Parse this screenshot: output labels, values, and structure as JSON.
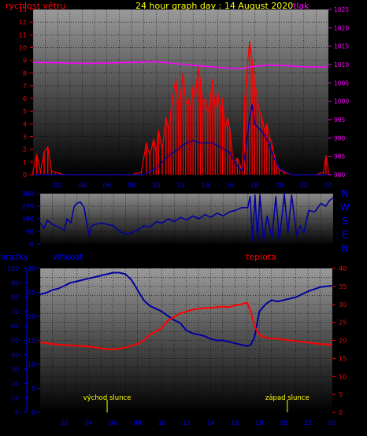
{
  "colors": {
    "wind": "#ff0000",
    "pressure": "#ff00ff",
    "direction": "#0000a0",
    "humidity": "#0000a0",
    "temperature": "#ff0000",
    "axis_text": "#0000ff",
    "title": "#ffff00"
  },
  "chart_data": [
    {
      "type": "line",
      "panel": "wind-pressure",
      "title": "24 hour graph day : 14 August 2020",
      "left_axis_label": "rychlost větru",
      "right_axis_label": "tlak",
      "x_ticks": [
        "02",
        "04",
        "06",
        "08",
        "10",
        "12",
        "14",
        "16",
        "18",
        "20",
        "22",
        "00"
      ],
      "y_left_ticks": [
        "0",
        "1",
        "2",
        "3",
        "4",
        "5",
        "6",
        "7",
        "8",
        "9",
        "10",
        "11",
        "12",
        "13"
      ],
      "y_left_range": [
        0,
        13
      ],
      "y_right_ticks": [
        "980",
        "985",
        "990",
        "995",
        "1000",
        "1005",
        "1010",
        "1015",
        "1020",
        "1025"
      ],
      "y_right_range": [
        980,
        1025
      ],
      "series": [
        {
          "key": "wind_gust",
          "x": [
            0,
            0.3,
            0.6,
            0.9,
            1.2,
            1.5,
            1.8,
            2.5,
            4,
            6,
            8,
            8.8,
            9.2,
            9.5,
            9.8,
            10,
            10.2,
            10.5,
            10.8,
            11,
            11.2,
            11.4,
            11.6,
            11.8,
            12,
            12.2,
            12.4,
            12.6,
            12.8,
            13,
            13.2,
            13.4,
            13.6,
            13.8,
            14,
            14.2,
            14.4,
            14.6,
            14.8,
            15,
            15.2,
            15.4,
            15.6,
            15.8,
            16,
            16.2,
            16.4,
            16.6,
            16.8,
            17,
            17.2,
            17.4,
            17.6,
            17.8,
            18,
            18.2,
            18.4,
            18.6,
            18.8,
            19,
            19.2,
            19.4,
            19.6,
            19.8,
            20,
            20.4,
            21,
            22,
            23,
            23.6,
            23.8,
            24
          ],
          "values": [
            0.3,
            1.6,
            0.2,
            1.8,
            2.2,
            0.3,
            0.2,
            0,
            0,
            0,
            0,
            0.2,
            2.5,
            1.5,
            2.8,
            1.8,
            3.5,
            2,
            4.5,
            3.5,
            5,
            6.5,
            7.5,
            5.5,
            6.5,
            8,
            5.5,
            6,
            5,
            7,
            6,
            8.5,
            7.5,
            5.5,
            6,
            4.8,
            6,
            7.5,
            5,
            6.5,
            5,
            6,
            3.5,
            4.5,
            3.5,
            1.5,
            1,
            1.3,
            0.8,
            0.3,
            6,
            8.5,
            10.5,
            9,
            7.5,
            6,
            5,
            4.5,
            3.5,
            4,
            3,
            2.5,
            1.5,
            0.8,
            0.4,
            0.2,
            0,
            0,
            0,
            0.2,
            1.5,
            0.3
          ]
        },
        {
          "key": "wind_avg",
          "x": [
            0,
            2,
            9,
            10,
            10.5,
            11,
            11.5,
            12,
            12.5,
            13,
            13.5,
            14,
            14.5,
            15,
            15.5,
            16,
            16.5,
            17,
            17.3,
            17.6,
            17.8,
            18,
            18.5,
            19,
            19.5,
            20,
            21,
            24
          ],
          "values": [
            0,
            0,
            0,
            0.5,
            1,
            1.5,
            1.8,
            2.2,
            2.5,
            2.7,
            2.5,
            2.5,
            2.5,
            2.3,
            2,
            1.7,
            0.8,
            0.3,
            2,
            4.5,
            5.5,
            4,
            3.5,
            2.8,
            1.5,
            0.5,
            0,
            0
          ]
        },
        {
          "key": "pressure",
          "x": [
            0,
            2,
            4,
            6,
            8,
            10,
            12,
            14,
            16,
            17,
            17.5,
            18,
            19,
            20,
            22,
            24
          ],
          "values": [
            1010.6,
            1010.5,
            1010.3,
            1010.4,
            1010.6,
            1010.8,
            1010.1,
            1009.5,
            1009.0,
            1008.9,
            1009.2,
            1009.5,
            1009.8,
            1009.8,
            1009.4,
            1009.3
          ]
        }
      ]
    },
    {
      "type": "line",
      "panel": "wind-direction",
      "y_ticks": [
        "0",
        "90",
        "180",
        "270",
        "360"
      ],
      "y_range": [
        0,
        360
      ],
      "compass_labels": [
        "N",
        "W",
        "S",
        "E",
        "N"
      ],
      "x_ticks": [
        "02",
        "04",
        "06",
        "08",
        "10",
        "12",
        "14",
        "16",
        "18",
        "20",
        "22",
        "00"
      ],
      "series": [
        {
          "key": "direction",
          "x": [
            0,
            0.3,
            0.6,
            1,
            1.5,
            2,
            2.2,
            2.5,
            2.8,
            3,
            3.3,
            3.6,
            4,
            4.2,
            4.5,
            5,
            5.5,
            6,
            6.5,
            7,
            7.5,
            8,
            8.5,
            9,
            9.5,
            10,
            10.5,
            11,
            11.5,
            12,
            12.5,
            13,
            13.5,
            14,
            14.5,
            15,
            15.5,
            16,
            16.5,
            17,
            17.2,
            17.4,
            17.6,
            17.8,
            18,
            18.3,
            18.6,
            19,
            19.3,
            19.6,
            20,
            20.3,
            20.6,
            21,
            21.3,
            21.6,
            22,
            22.5,
            23,
            23.4,
            23.7,
            24
          ],
          "values": [
            150,
            110,
            170,
            140,
            120,
            100,
            180,
            150,
            270,
            290,
            300,
            260,
            60,
            130,
            140,
            150,
            140,
            130,
            90,
            70,
            80,
            100,
            130,
            120,
            160,
            150,
            180,
            160,
            190,
            170,
            200,
            180,
            210,
            190,
            220,
            200,
            230,
            240,
            260,
            260,
            340,
            20,
            350,
            30,
            350,
            20,
            200,
            40,
            340,
            20,
            360,
            80,
            350,
            60,
            130,
            80,
            240,
            230,
            290,
            270,
            310,
            330
          ]
        }
      ]
    },
    {
      "type": "line",
      "panel": "rain-humidity-temperature",
      "left_axis_label": "srážky",
      "mid_axis_label": "vlhkost",
      "right_axis_label": "teplota",
      "x_ticks": [
        "02",
        "04",
        "06",
        "08",
        "10",
        "12",
        "14",
        "16",
        "18",
        "20",
        "22",
        "00"
      ],
      "y_left_ticks": [
        "0",
        "10",
        "20",
        "30",
        "40",
        "50",
        "60",
        "70",
        "80",
        "90",
        "100"
      ],
      "y_left_range": [
        0,
        100
      ],
      "y_mid_ticks": [
        "0",
        "5",
        "10",
        "15",
        "20",
        "25",
        "30"
      ],
      "y_mid_range": [
        0,
        30
      ],
      "y_right_ticks": [
        "0",
        "5",
        "10",
        "15",
        "20",
        "25",
        "30",
        "35",
        "40"
      ],
      "y_right_range": [
        0,
        40
      ],
      "annotations": [
        {
          "text": "východ slunce",
          "x": 5.5
        },
        {
          "text": "západ slunce",
          "x": 20.3
        }
      ],
      "series": [
        {
          "key": "humidity",
          "x": [
            0,
            0.5,
            1,
            1.5,
            2,
            2.5,
            3,
            3.5,
            4,
            4.5,
            5,
            5.5,
            6,
            6.5,
            7,
            7.5,
            8,
            8.5,
            9,
            9.5,
            10,
            10.5,
            11,
            11.5,
            12,
            12.5,
            13,
            13.5,
            14,
            14.5,
            15,
            15.5,
            16,
            16.5,
            17,
            17.3,
            17.6,
            18,
            18.5,
            19,
            19.5,
            20,
            21,
            22,
            23,
            24
          ],
          "values": [
            82,
            83,
            85,
            86,
            88,
            90,
            91,
            92,
            93,
            94,
            95,
            96,
            97,
            97,
            96,
            92,
            85,
            78,
            74,
            72,
            70,
            67,
            64,
            62,
            57,
            55,
            54,
            53,
            51,
            50,
            50,
            49,
            48,
            47,
            46,
            47,
            52,
            70,
            75,
            78,
            77,
            78,
            80,
            84,
            87,
            88
          ]
        },
        {
          "key": "temperature",
          "x": [
            0,
            1,
            2,
            3,
            4,
            5,
            5.5,
            6,
            6.5,
            7,
            7.5,
            8,
            8.5,
            9,
            9.5,
            10,
            10.5,
            11,
            11.5,
            12,
            12.5,
            13,
            13.5,
            14,
            14.5,
            15,
            15.5,
            16,
            16.5,
            17,
            17.3,
            17.6,
            18,
            18.5,
            19,
            19.5,
            20,
            21,
            22,
            23,
            24
          ],
          "values": [
            19.5,
            19.0,
            18.7,
            18.5,
            18.3,
            17.8,
            17.5,
            17.5,
            17.7,
            18.0,
            18.5,
            19.0,
            20.0,
            21.5,
            22.5,
            23.5,
            25.5,
            26.5,
            27.5,
            28.0,
            28.5,
            28.8,
            29.0,
            29.0,
            29.2,
            29.4,
            29.2,
            29.8,
            30.0,
            30.5,
            28.0,
            24.0,
            21.5,
            20.8,
            20.5,
            20.5,
            20.2,
            19.8,
            19.4,
            19.0,
            18.8
          ]
        }
      ]
    }
  ]
}
